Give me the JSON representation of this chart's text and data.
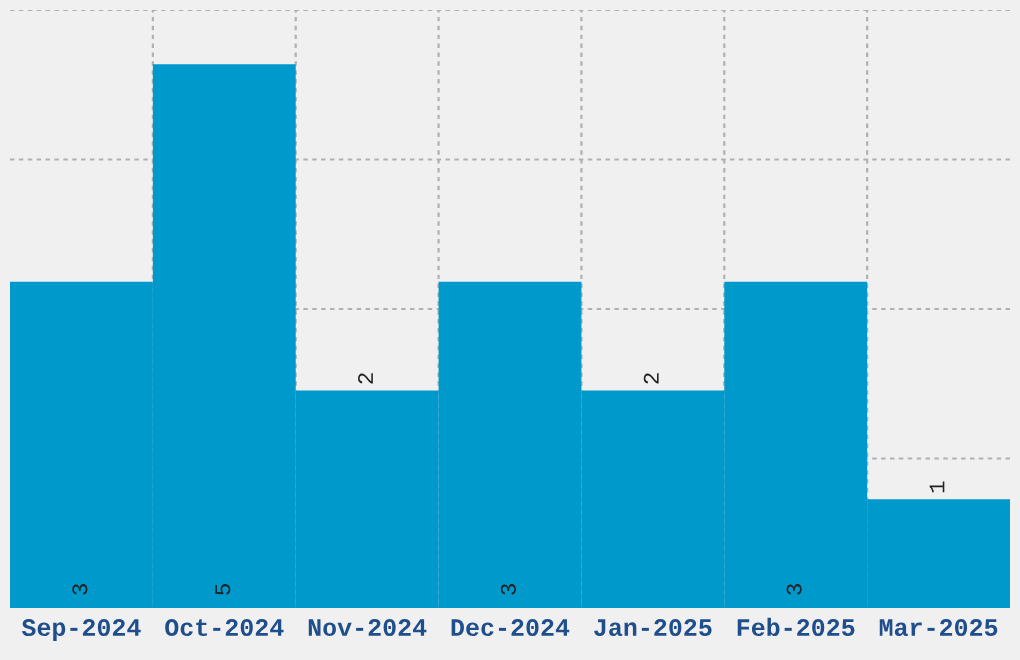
{
  "chart_data": {
    "type": "bar",
    "categories": [
      "Sep-2024",
      "Oct-2024",
      "Nov-2024",
      "Dec-2024",
      "Jan-2025",
      "Feb-2025",
      "Mar-2025"
    ],
    "values": [
      3,
      5,
      2,
      3,
      2,
      3,
      1
    ],
    "color": "#0099cc",
    "ylim": [
      0,
      5.5
    ],
    "yticks": [
      {
        "value": 1.375,
        "label": null
      },
      {
        "value": 2.75,
        "label": null
      },
      {
        "value": 4.125,
        "label": null
      },
      {
        "value": 5.5,
        "label": null
      }
    ],
    "tick_labels": "x",
    "grid": true,
    "data_labels": true
  }
}
